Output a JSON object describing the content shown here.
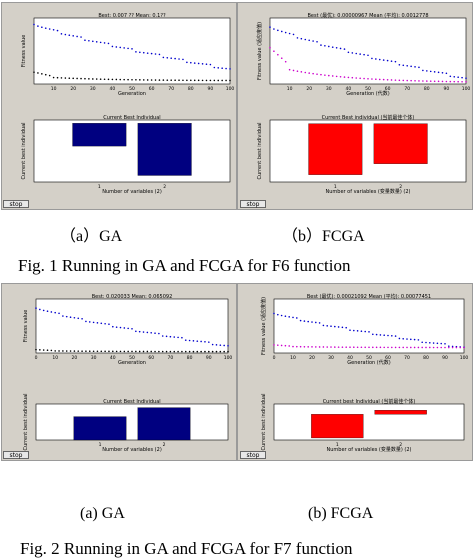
{
  "figures": [
    {
      "caption": "Fig. 1 Running in GA and FCGA for F6 function",
      "subcaptions": [
        "（a）GA",
        "（b）FCGA"
      ]
    },
    {
      "caption": "Fig. 2 Running in GA and FCGA for F7 function",
      "subcaptions": [
        "(a) GA",
        "(b) FCGA"
      ]
    }
  ],
  "chart_data": [
    {
      "id": "f1a-top",
      "type": "scatter",
      "title": "Best: 0.007 ?? Mean: 0.1??",
      "xlabel": "Generation",
      "ylabel": "Fitness value",
      "xlim": [
        0,
        100
      ],
      "ylim": [
        0,
        1
      ],
      "xticks": [
        10,
        20,
        30,
        40,
        50,
        60,
        70,
        80,
        90,
        100
      ],
      "series": [
        {
          "kind": "mean",
          "color": "#0000cc",
          "x": [
            0,
            100
          ],
          "y": [
            0.92,
            0.22
          ]
        },
        {
          "kind": "best",
          "color": "#000000",
          "x": [
            0,
            100
          ],
          "y": [
            0.18,
            0.05
          ]
        }
      ]
    },
    {
      "id": "f1a-bottom",
      "type": "bar",
      "title": "Current Best Individual",
      "xlabel": "Number of variables (2)",
      "ylabel": "Current best individual",
      "categories": [
        "1",
        "2"
      ],
      "values": [
        -0.35,
        -0.8
      ],
      "ylim": [
        -0.9,
        0.05
      ],
      "color": "#000080"
    },
    {
      "id": "f1b-top",
      "type": "scatter",
      "title": "Best (最优): 0.00000967 Mean (平均): 0.0012778",
      "xlabel": "Generation (代数)",
      "ylabel": "Fitness value (适应度值)",
      "xlim": [
        0,
        100
      ],
      "ylim": [
        0,
        0.01
      ],
      "xticks": [
        10,
        20,
        30,
        40,
        50,
        60,
        70,
        80,
        90,
        100
      ],
      "series": [
        {
          "kind": "mean",
          "color": "#0000cc",
          "x": [
            0,
            100
          ],
          "y": [
            0.0088,
            0.0008
          ]
        },
        {
          "kind": "best",
          "color": "#cc00cc",
          "x": [
            0,
            100
          ],
          "y": [
            0.0055,
            0.0002
          ]
        }
      ]
    },
    {
      "id": "f1b-bottom",
      "type": "bar",
      "title": "Current Best individual (当前最佳个体)",
      "xlabel": "Number of variables (变量数量) (2)",
      "ylabel": "Current best individual",
      "categories": [
        "1",
        "2"
      ],
      "values": [
        -7.0,
        -5.5
      ],
      "ylim": [
        -8,
        0.5
      ],
      "color": "#ff0000"
    },
    {
      "id": "f2a-top",
      "type": "scatter",
      "title": "Best: 0.020033 Mean: 0.065092",
      "xlabel": "Generation",
      "ylabel": "Fitness value",
      "xlim": [
        0,
        100
      ],
      "ylim": [
        0,
        0.8
      ],
      "xticks": [
        0,
        10,
        20,
        30,
        40,
        50,
        60,
        70,
        80,
        90,
        100
      ],
      "series": [
        {
          "kind": "mean",
          "color": "#0000cc",
          "x": [
            0,
            100
          ],
          "y": [
            0.68,
            0.1
          ]
        },
        {
          "kind": "best",
          "color": "#000000",
          "x": [
            0,
            100
          ],
          "y": [
            0.05,
            0.02
          ]
        }
      ]
    },
    {
      "id": "f2a-bottom",
      "type": "bar",
      "title": "Current Best Individual",
      "xlabel": "Number of variables (2)",
      "ylabel": "Current best individual",
      "categories": [
        "1",
        "2"
      ],
      "values": [
        2.6,
        3.6
      ],
      "ylim": [
        0,
        4
      ],
      "color": "#000080"
    },
    {
      "id": "f2b-top",
      "type": "scatter",
      "title": "Best (最优): 0.00021092 Mean (平均): 0.00077451",
      "xlabel": "Generation (代数)",
      "ylabel": "Fitness value (适应度值)",
      "xlim": [
        0,
        100
      ],
      "ylim": [
        0,
        0.01
      ],
      "xticks": [
        0,
        10,
        20,
        30,
        40,
        50,
        60,
        70,
        80,
        90,
        100
      ],
      "series": [
        {
          "kind": "mean",
          "color": "#0000cc",
          "x": [
            0,
            100
          ],
          "y": [
            0.0075,
            0.001
          ]
        },
        {
          "kind": "best",
          "color": "#cc00cc",
          "x": [
            0,
            100
          ],
          "y": [
            0.0015,
            0.001
          ]
        }
      ]
    },
    {
      "id": "f2b-bottom",
      "type": "bar",
      "title": "Current best Individual (当前最佳个体)",
      "xlabel": "Number of variables (变量数量) (2)",
      "ylabel": "Current best individual",
      "categories": [
        "1",
        "2"
      ],
      "values": [
        -4.6,
        0.8
      ],
      "ylim": [
        -5,
        2
      ],
      "color": "#ff0000"
    }
  ],
  "controls": {
    "stop_label": "stop"
  }
}
